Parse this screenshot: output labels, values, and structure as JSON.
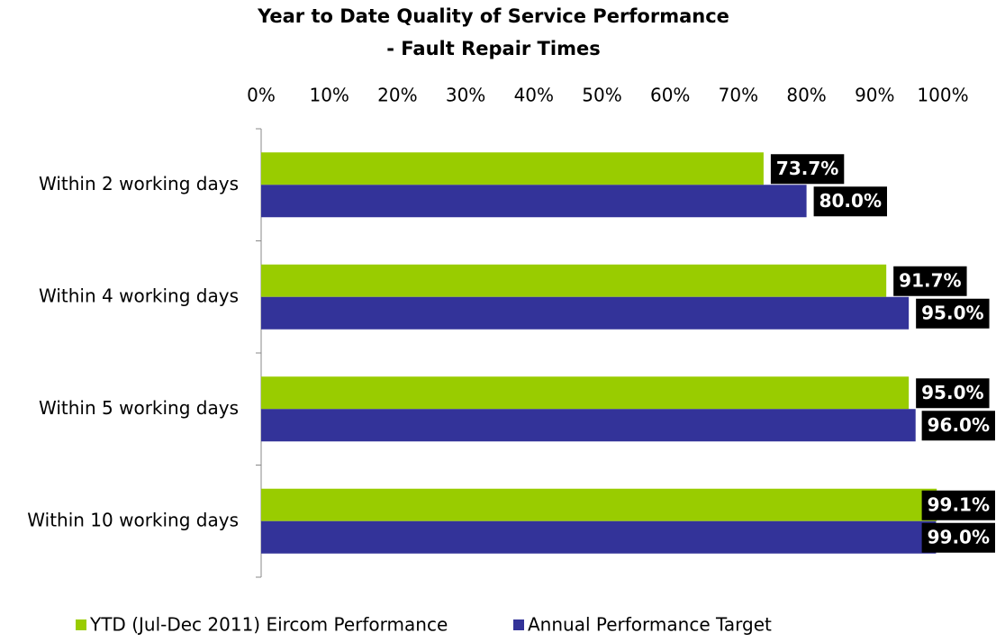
{
  "chart_data": {
    "type": "hbar",
    "title": [
      "Year to Date Quality of Service Performance",
      "- Fault Repair Times"
    ],
    "categories": [
      "Within 2 working days",
      "Within 4 working days",
      "Within 5 working days",
      "Within 10 working days"
    ],
    "series": [
      {
        "name": "YTD (Jul-Dec 2011) Eircom Performance",
        "color": "#99cc00",
        "values": [
          73.7,
          91.7,
          95.0,
          99.1
        ],
        "value_labels": [
          "73.7%",
          "91.7%",
          "95.0%",
          "99.1%"
        ]
      },
      {
        "name": "Annual Performance Target",
        "color": "#333399",
        "values": [
          80.0,
          95.0,
          96.0,
          99.0
        ],
        "value_labels": [
          "80.0%",
          "95.0%",
          "96.0%",
          "99.0%"
        ]
      }
    ],
    "xlim": [
      0,
      100
    ],
    "xticks": [
      {
        "value": 0,
        "label": "0%"
      },
      {
        "value": 10,
        "label": "10%"
      },
      {
        "value": 20,
        "label": "20%"
      },
      {
        "value": 30,
        "label": "30%"
      },
      {
        "value": 40,
        "label": "40%"
      },
      {
        "value": 50,
        "label": "50%"
      },
      {
        "value": 60,
        "label": "60%"
      },
      {
        "value": 70,
        "label": "70%"
      },
      {
        "value": 80,
        "label": "80%"
      },
      {
        "value": 90,
        "label": "90%"
      },
      {
        "value": 100,
        "label": "100%"
      }
    ],
    "grid": false,
    "legend": "bottom"
  }
}
